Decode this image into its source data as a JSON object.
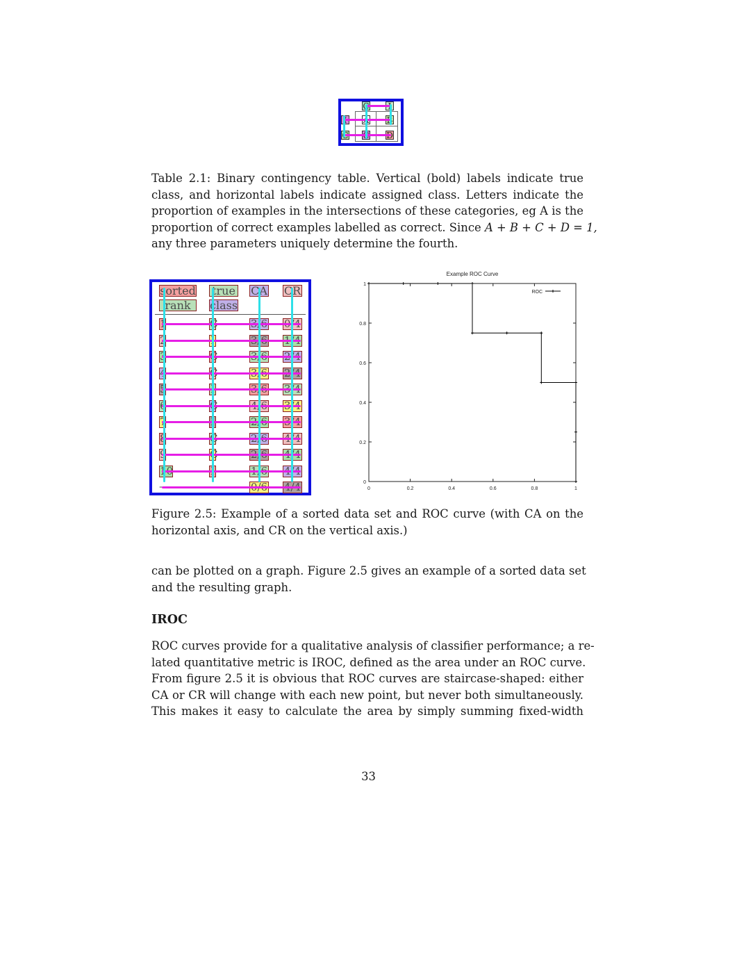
{
  "contingency_table": {
    "column_labels": [
      "C",
      "I"
    ],
    "row_labels": [
      "I",
      "C"
    ],
    "cells": [
      [
        "A",
        "B"
      ],
      [
        "C",
        "D"
      ]
    ]
  },
  "table_caption": {
    "label": "Table 2.1:",
    "lines": [
      "Binary contingency table. Vertical (bold) labels indicate true",
      "class, and horizontal labels indicate assigned class. Letters indicate the",
      "proportion of examples in the intersections of these categories, eg A is the",
      "proportion of correct examples labelled as correct. Since",
      "any three parameters uniquely determine the fourth."
    ],
    "equation": "A + B + C + D = 1,"
  },
  "data_table": {
    "headers": [
      [
        "sorted",
        "rank"
      ],
      [
        "true",
        "class"
      ],
      [
        "CA"
      ],
      [
        "CR"
      ]
    ],
    "rows": [
      [
        "1",
        "C",
        "3/6",
        "0/4"
      ],
      [
        "2",
        "I",
        "3/6",
        "1/4"
      ],
      [
        "3",
        "C",
        "3/6",
        "2/4"
      ],
      [
        "4",
        "C",
        "3/6",
        "2/4"
      ],
      [
        "5",
        "I",
        "3/6",
        "3/4"
      ],
      [
        "6",
        "C",
        "4/6",
        "3/4"
      ],
      [
        "7",
        "I",
        "2/6",
        "3/4"
      ],
      [
        "8",
        "C",
        "2/6",
        "4/4"
      ],
      [
        "9",
        "C",
        "2/6",
        "4/4"
      ],
      [
        "10",
        "I",
        "1/6",
        "4/4"
      ],
      [
        "—",
        "—",
        "0/6",
        "4/4"
      ]
    ]
  },
  "chart_data": {
    "type": "line",
    "title": "Example ROC Curve",
    "xlabel": "",
    "ylabel": "",
    "xlim": [
      0,
      1
    ],
    "ylim": [
      0,
      1
    ],
    "xticks": [
      "0",
      "0.2",
      "0.4",
      "0.6",
      "0.8",
      "1"
    ],
    "yticks": [
      "0",
      "0.2",
      "0.4",
      "0.6",
      "0.8",
      "1"
    ],
    "legend_position": "top-right",
    "grid": false,
    "series": [
      {
        "name": "ROC",
        "color": "#000000",
        "x": [
          0,
          0.1667,
          0.3333,
          0.5,
          0.5,
          0.6667,
          0.8333,
          0.8333,
          1,
          1,
          1
        ],
        "y": [
          1,
          1,
          1,
          1,
          0.75,
          0.75,
          0.75,
          0.5,
          0.5,
          0.25,
          0
        ]
      }
    ]
  },
  "figure_caption": {
    "lines": [
      "Figure 2.5: Example of a sorted data set and ROC curve (with CA on the",
      "horizontal axis, and CR on the vertical axis.)"
    ]
  },
  "body_paragraph": {
    "lines": [
      "can be plotted on a graph. Figure 2.5 gives an example of a sorted data set",
      "and the resulting graph."
    ]
  },
  "section_heading": "IROC",
  "iroc_paragraph": {
    "lines": [
      "ROC curves provide for a qualitative analysis of classifier performance; a re-",
      "lated quantitative metric is IROC, defined as the area under an ROC curve.",
      "From figure 2.5 it is obvious that ROC curves are staircase-shaped: either",
      "CA or CR will change with each new point, but never both simultaneously.",
      "This makes it easy to calculate the area by simply summing fixed-width"
    ]
  },
  "page_number": "33",
  "colors": {
    "frame_blue": "#1010e0",
    "overlay_magenta": "#e61ee6",
    "overlay_cyan": "#2ee0e8"
  }
}
